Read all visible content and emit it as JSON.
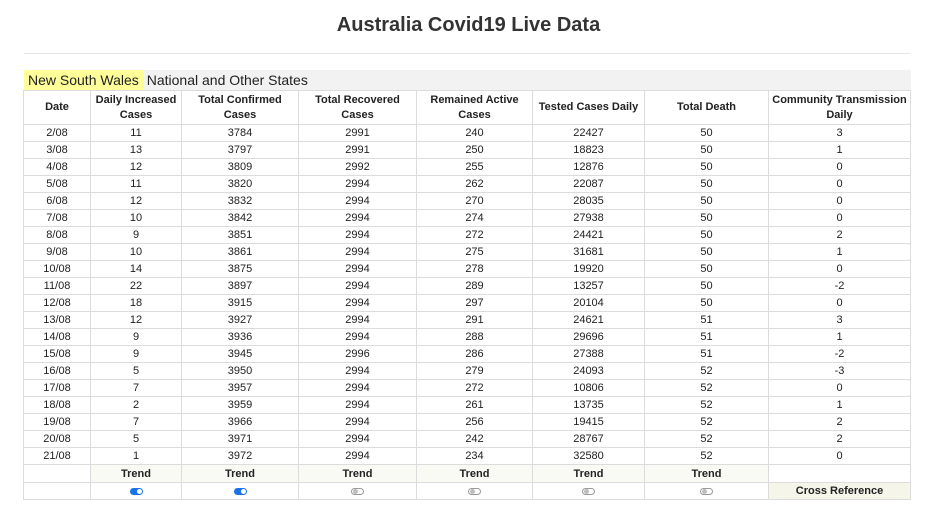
{
  "title": "Australia Covid19 Live Data",
  "tabs": [
    {
      "label": "New South Wales",
      "active": true
    },
    {
      "label": "National and Other States",
      "active": false
    }
  ],
  "table": {
    "headers": [
      "Date",
      "Daily Increased Cases",
      "Total Confirmed Cases",
      "Total Recovered Cases",
      "Remained Active Cases",
      "Tested Cases Daily",
      "Total Death",
      "Community Transmission Daily"
    ],
    "rows": [
      [
        "2/08",
        "11",
        "3784",
        "2991",
        "240",
        "22427",
        "50",
        "3"
      ],
      [
        "3/08",
        "13",
        "3797",
        "2991",
        "250",
        "18823",
        "50",
        "1"
      ],
      [
        "4/08",
        "12",
        "3809",
        "2992",
        "255",
        "12876",
        "50",
        "0"
      ],
      [
        "5/08",
        "11",
        "3820",
        "2994",
        "262",
        "22087",
        "50",
        "0"
      ],
      [
        "6/08",
        "12",
        "3832",
        "2994",
        "270",
        "28035",
        "50",
        "0"
      ],
      [
        "7/08",
        "10",
        "3842",
        "2994",
        "274",
        "27938",
        "50",
        "0"
      ],
      [
        "8/08",
        "9",
        "3851",
        "2994",
        "272",
        "24421",
        "50",
        "2"
      ],
      [
        "9/08",
        "10",
        "3861",
        "2994",
        "275",
        "31681",
        "50",
        "1"
      ],
      [
        "10/08",
        "14",
        "3875",
        "2994",
        "278",
        "19920",
        "50",
        "0"
      ],
      [
        "11/08",
        "22",
        "3897",
        "2994",
        "289",
        "13257",
        "50",
        "-2"
      ],
      [
        "12/08",
        "18",
        "3915",
        "2994",
        "297",
        "20104",
        "50",
        "0"
      ],
      [
        "13/08",
        "12",
        "3927",
        "2994",
        "291",
        "24621",
        "51",
        "3"
      ],
      [
        "14/08",
        "9",
        "3936",
        "2994",
        "288",
        "29696",
        "51",
        "1"
      ],
      [
        "15/08",
        "9",
        "3945",
        "2996",
        "286",
        "27388",
        "51",
        "-2"
      ],
      [
        "16/08",
        "5",
        "3950",
        "2994",
        "279",
        "24093",
        "52",
        "-3"
      ],
      [
        "17/08",
        "7",
        "3957",
        "2994",
        "272",
        "10806",
        "52",
        "0"
      ],
      [
        "18/08",
        "2",
        "3959",
        "2994",
        "261",
        "13735",
        "52",
        "1"
      ],
      [
        "19/08",
        "7",
        "3966",
        "2994",
        "256",
        "19415",
        "52",
        "2"
      ],
      [
        "20/08",
        "5",
        "3971",
        "2994",
        "242",
        "28767",
        "52",
        "2"
      ],
      [
        "21/08",
        "1",
        "3972",
        "2994",
        "234",
        "32580",
        "52",
        "0"
      ]
    ],
    "trend_label": "Trend",
    "toggles": [
      true,
      true,
      false,
      false,
      false,
      false
    ],
    "cross_reference": "Cross Reference"
  },
  "colors": {
    "active_tab": "#ffff99",
    "toggle_on": "#1a73e8"
  }
}
